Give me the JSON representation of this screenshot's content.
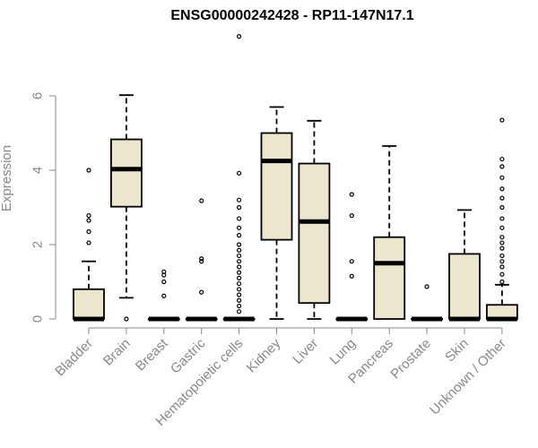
{
  "chart_data": {
    "type": "boxplot",
    "title": "ENSG00000242428 - RP11-147N17.1",
    "xlabel": "",
    "ylabel": "Expression",
    "ylim": [
      0,
      7.8
    ],
    "yticks": [
      0,
      2,
      4,
      6
    ],
    "grid": false,
    "box_fill": "#ede6cf",
    "box_stroke": "#000000",
    "axis_color": "#888888",
    "categories": [
      "Bladder",
      "Brain",
      "Breast",
      "Gastric",
      "Hematopoietic cells",
      "Kidney",
      "Liver",
      "Lung",
      "Pancreas",
      "Prostate",
      "Skin",
      "Unknown / Other"
    ],
    "series": [
      {
        "q1": 0,
        "median": 0,
        "q3": 0.8,
        "whisker_low": 0,
        "whisker_high": 1.55,
        "outliers": [
          2.05,
          2.35,
          2.65,
          2.78,
          4.0
        ]
      },
      {
        "q1": 3.02,
        "median": 4.03,
        "q3": 4.83,
        "whisker_low": 0.57,
        "whisker_high": 6.02,
        "outliers": [
          0
        ]
      },
      {
        "q1": 0,
        "median": 0,
        "q3": 0,
        "whisker_low": 0,
        "whisker_high": 0,
        "outliers": [
          0.62,
          1.0,
          1.18,
          1.27
        ]
      },
      {
        "q1": 0,
        "median": 0,
        "q3": 0,
        "whisker_low": 0,
        "whisker_high": 0,
        "outliers": [
          0.72,
          1.55,
          1.62,
          3.18
        ]
      },
      {
        "q1": 0,
        "median": 0,
        "q3": 0,
        "whisker_low": 0,
        "whisker_high": 0,
        "outliers": [
          0.2,
          0.35,
          0.5,
          0.65,
          0.8,
          0.95,
          1.1,
          1.25,
          1.4,
          1.55,
          1.7,
          1.85,
          2.0,
          2.25,
          2.45,
          2.7,
          3.0,
          3.2,
          3.92,
          7.6
        ]
      },
      {
        "q1": 2.13,
        "median": 4.25,
        "q3": 5.0,
        "whisker_low": 0,
        "whisker_high": 5.7,
        "outliers": []
      },
      {
        "q1": 0.43,
        "median": 2.62,
        "q3": 4.18,
        "whisker_low": 0,
        "whisker_high": 5.33,
        "outliers": []
      },
      {
        "q1": 0,
        "median": 0,
        "q3": 0,
        "whisker_low": 0,
        "whisker_high": 0,
        "outliers": [
          1.15,
          1.55,
          2.78,
          3.35
        ]
      },
      {
        "q1": 0,
        "median": 1.5,
        "q3": 2.2,
        "whisker_low": 0,
        "whisker_high": 4.65,
        "outliers": []
      },
      {
        "q1": 0,
        "median": 0,
        "q3": 0,
        "whisker_low": 0,
        "whisker_high": 0,
        "outliers": [
          0.87
        ]
      },
      {
        "q1": 0,
        "median": 0,
        "q3": 1.75,
        "whisker_low": 0,
        "whisker_high": 2.93,
        "outliers": []
      },
      {
        "q1": 0,
        "median": 0,
        "q3": 0.38,
        "whisker_low": 0,
        "whisker_high": 0.92,
        "outliers": [
          1.0,
          1.2,
          1.4,
          1.55,
          1.7,
          1.9,
          2.05,
          2.2,
          2.45,
          2.7,
          3.0,
          3.25,
          3.5,
          3.8,
          4.1,
          4.3,
          5.35
        ]
      }
    ]
  }
}
